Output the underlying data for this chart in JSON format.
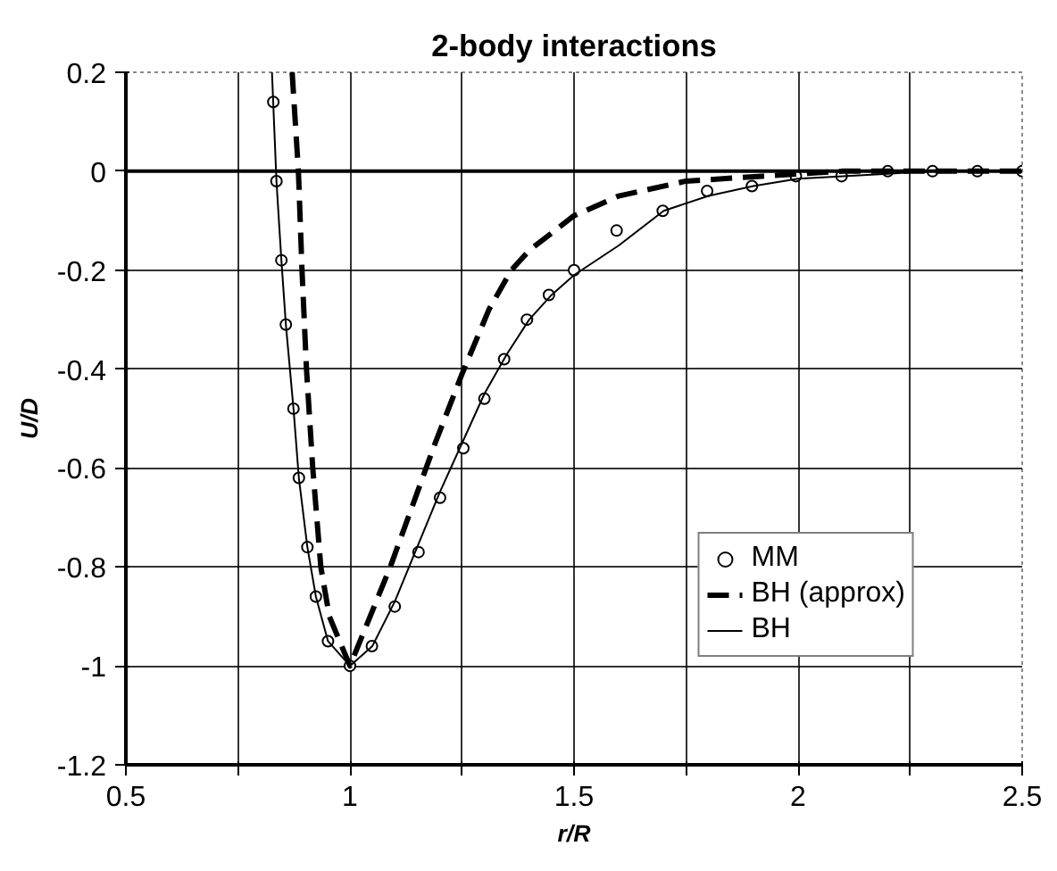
{
  "chart_data": {
    "type": "line",
    "title": "2-body interactions",
    "xlabel": "r/R",
    "ylabel": "U/D",
    "xlim": [
      0.5,
      2.5
    ],
    "ylim": [
      -1.2,
      0.2
    ],
    "xticks": [
      0.5,
      {
        "value": 0.75,
        "label": null
      },
      1,
      {
        "value": 1.25,
        "label": null
      },
      1.5,
      {
        "value": 1.75,
        "label": null
      },
      2,
      {
        "value": 2.25,
        "label": null
      },
      2.5
    ],
    "yticks": [
      -1.2,
      -1,
      -0.8,
      -0.6,
      -0.4,
      -0.2,
      0,
      0.2
    ],
    "grid": true,
    "legend": "bottom right",
    "ref_lines": [
      {
        "axis": "y",
        "value": 0,
        "color": "#000000"
      }
    ],
    "series": [
      {
        "name": "MM",
        "type": "scatter",
        "marker": "circle",
        "color": "#000000",
        "x": [
          0.829,
          0.836,
          0.847,
          0.857,
          0.874,
          0.886,
          0.905,
          0.924,
          0.951,
          1.0,
          1.049,
          1.1,
          1.153,
          1.201,
          1.253,
          1.3,
          1.344,
          1.395,
          1.444,
          1.5,
          1.595,
          1.698,
          1.797,
          1.897,
          1.995,
          2.097,
          2.2,
          2.3,
          2.4,
          2.5
        ],
        "values": [
          0.14,
          -0.02,
          -0.18,
          -0.31,
          -0.48,
          -0.62,
          -0.76,
          -0.86,
          -0.95,
          -1.0,
          -0.96,
          -0.88,
          -0.77,
          -0.66,
          -0.56,
          -0.46,
          -0.38,
          -0.3,
          -0.25,
          -0.2,
          -0.12,
          -0.08,
          -0.04,
          -0.03,
          -0.01,
          -0.01,
          0,
          0,
          0,
          0
        ]
      },
      {
        "name": "BH (approx)",
        "line_style": "dashed",
        "color": "#000000",
        "x": [
          0.871,
          0.885,
          0.893,
          0.903,
          0.917,
          0.935,
          0.954,
          1.0,
          1.09,
          1.19,
          1.25,
          1.31,
          1.36,
          1.4,
          1.5,
          1.6,
          1.75,
          1.92,
          2.1,
          2.5
        ],
        "values": [
          0.2,
          0,
          -0.2,
          -0.4,
          -0.6,
          -0.8,
          -0.9,
          -1.0,
          -0.8,
          -0.55,
          -0.41,
          -0.28,
          -0.2,
          -0.16,
          -0.09,
          -0.05,
          -0.02,
          -0.01,
          0,
          0
        ]
      },
      {
        "name": "BH",
        "line_style": "solid",
        "color": "#000000",
        "x": [
          0.826,
          0.836,
          0.847,
          0.857,
          0.874,
          0.886,
          0.905,
          0.924,
          0.951,
          1.0,
          1.05,
          1.1,
          1.15,
          1.2,
          1.25,
          1.3,
          1.35,
          1.4,
          1.45,
          1.5,
          1.6,
          1.7,
          1.8,
          1.9,
          2.0,
          2.1,
          2.2,
          2.3,
          2.4,
          2.5
        ],
        "values": [
          0.2,
          -0.02,
          -0.18,
          -0.31,
          -0.48,
          -0.62,
          -0.76,
          -0.86,
          -0.95,
          -1.0,
          -0.96,
          -0.87,
          -0.76,
          -0.65,
          -0.55,
          -0.45,
          -0.37,
          -0.3,
          -0.25,
          -0.21,
          -0.15,
          -0.08,
          -0.05,
          -0.03,
          -0.015,
          -0.01,
          -0.005,
          0,
          0,
          0
        ]
      }
    ]
  }
}
